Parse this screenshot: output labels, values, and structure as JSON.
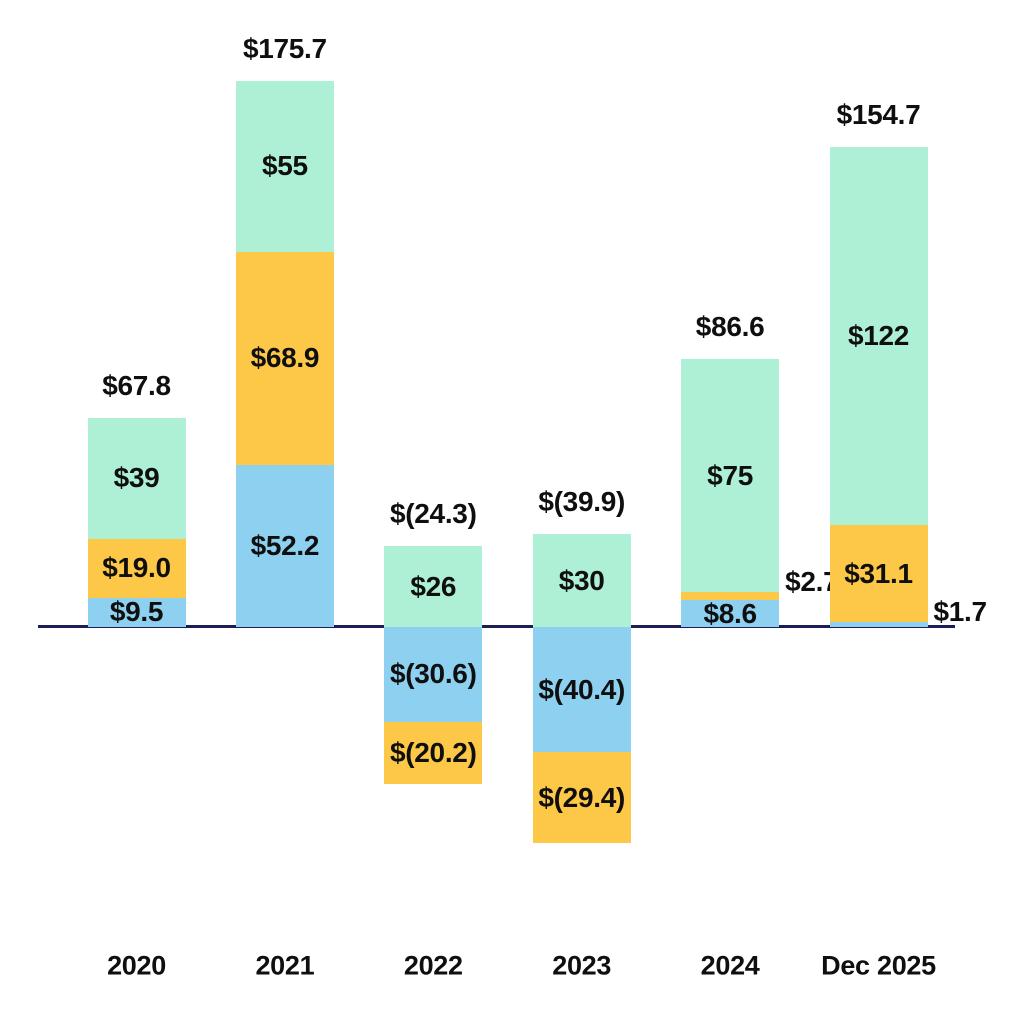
{
  "chart_data": {
    "type": "bar",
    "stacked": true,
    "title": "",
    "xlabel": "",
    "ylabel": "",
    "grid": false,
    "legend_position": "none",
    "categories": [
      "2020",
      "2021",
      "2022",
      "2023",
      "2024",
      "Dec 2025"
    ],
    "series": [
      {
        "name": "blue",
        "color": "#8ED0F0",
        "values": [
          9.5,
          52.2,
          -30.6,
          -40.4,
          8.6,
          1.7
        ],
        "labels": [
          "$9.5",
          "$52.2",
          "$(30.6)",
          "$(40.4)",
          "$8.6",
          "$1.7"
        ],
        "label_placement": [
          "inside",
          "inside",
          "inside",
          "inside",
          "inside",
          "right"
        ]
      },
      {
        "name": "yellow",
        "color": "#FDC847",
        "values": [
          19.0,
          68.9,
          -20.2,
          -29.4,
          2.7,
          31.1
        ],
        "labels": [
          "$19.0",
          "$68.9",
          "$(20.2)",
          "$(29.4)",
          "$2.7",
          "$31.1"
        ],
        "label_placement": [
          "inside",
          "inside",
          "inside",
          "inside",
          "right",
          "inside"
        ]
      },
      {
        "name": "mint",
        "color": "#ADF0D6",
        "values": [
          39,
          55,
          26,
          30,
          75,
          122
        ],
        "labels": [
          "$39",
          "$55",
          "$26",
          "$30",
          "$75",
          "$122"
        ],
        "label_placement": [
          "inside",
          "inside",
          "inside",
          "inside",
          "inside",
          "inside"
        ]
      }
    ],
    "totals": {
      "values": [
        67.8,
        175.7,
        -24.3,
        -39.9,
        86.6,
        154.7
      ],
      "labels": [
        "$67.8",
        "$175.7",
        "$(24.3)",
        "$(39.9)",
        "$86.6",
        "$154.7"
      ]
    },
    "colors": {
      "axis_line": "#1D1D55",
      "text": "#0F0F0F",
      "background": "#FFFFFF"
    }
  }
}
